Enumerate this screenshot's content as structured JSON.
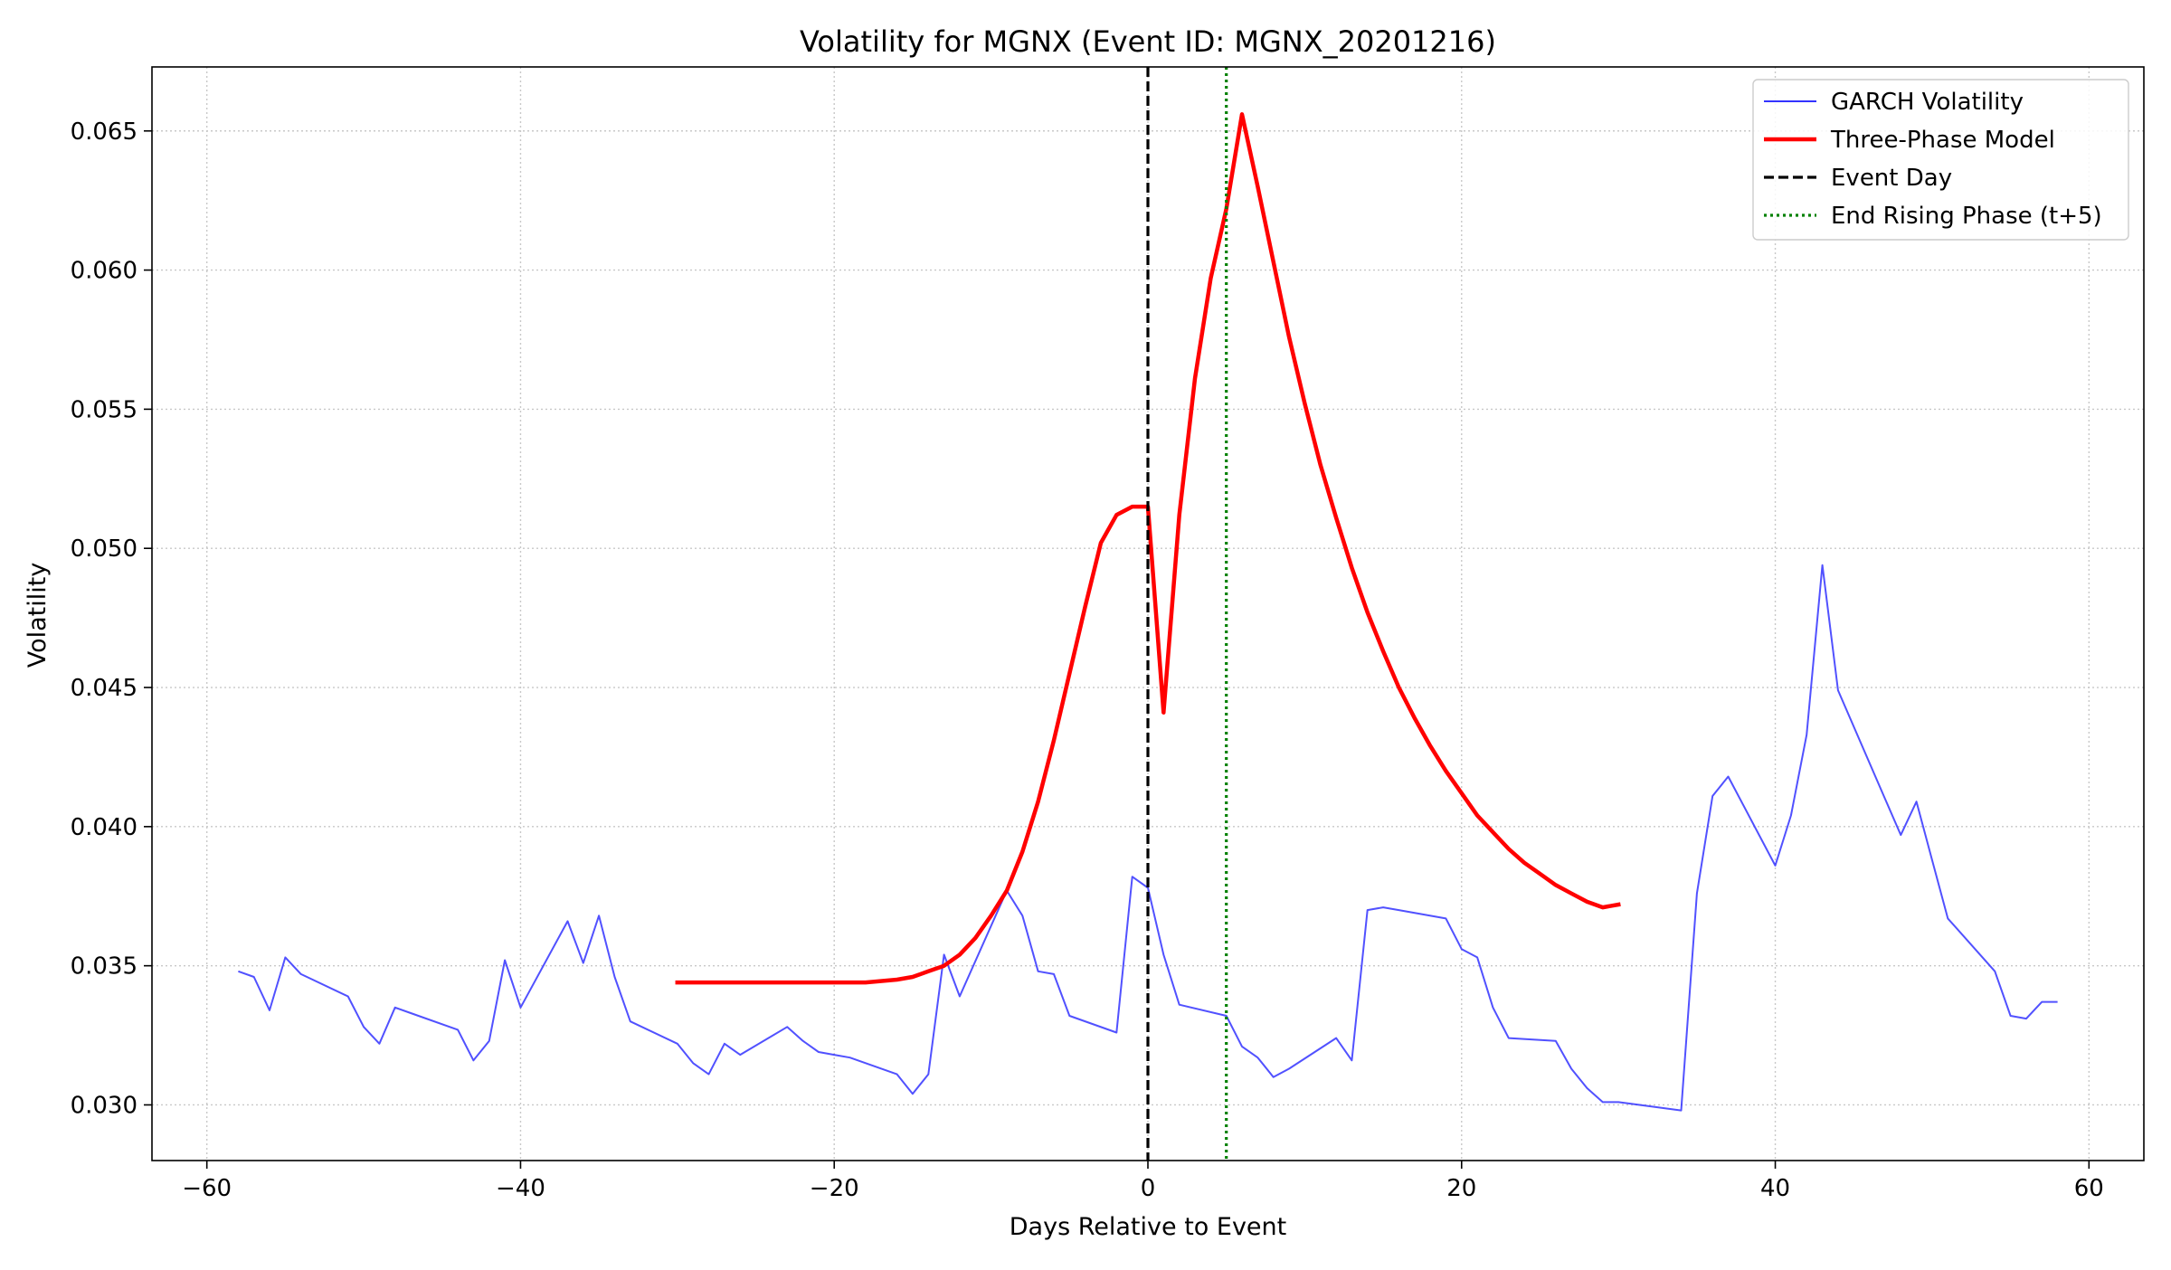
{
  "chart_data": {
    "type": "line",
    "title": "Volatility for MGNX (Event ID: MGNX_20201216)",
    "xlabel": "Days Relative to Event",
    "ylabel": "Volatility",
    "xlim": [
      -63.5,
      63.5
    ],
    "ylim": [
      0.028,
      0.0673
    ],
    "x_ticks": [
      -60,
      -40,
      -20,
      0,
      20,
      40,
      60
    ],
    "x_tick_labels": [
      "−60",
      "−40",
      "−20",
      "0",
      "20",
      "40",
      "60"
    ],
    "y_ticks": [
      0.03,
      0.035,
      0.04,
      0.045,
      0.05,
      0.055,
      0.06,
      0.065
    ],
    "y_tick_labels": [
      "0.030",
      "0.035",
      "0.040",
      "0.045",
      "0.050",
      "0.055",
      "0.060",
      "0.065"
    ],
    "grid": true,
    "legend_position": "top-right",
    "series": [
      {
        "name": "GARCH Volatility",
        "color": "#3333ff",
        "style": "solid-thin",
        "x": [
          -58,
          -57,
          -56,
          -55,
          -54,
          -51,
          -50,
          -49,
          -48,
          -47,
          -44,
          -43,
          -42,
          -41,
          -40,
          -37,
          -36,
          -35,
          -34,
          -33,
          -30,
          -29,
          -28,
          -27,
          -26,
          -23,
          -22,
          -21,
          -20,
          -19,
          -16,
          -15,
          -14,
          -13,
          -12,
          -9,
          -8,
          -7,
          -6,
          -5,
          -2,
          -1,
          0,
          1,
          2,
          5,
          6,
          7,
          8,
          9,
          12,
          13,
          14,
          15,
          16,
          19,
          20,
          21,
          22,
          23,
          26,
          27,
          28,
          29,
          30,
          34,
          35,
          36,
          37,
          40,
          41,
          42,
          43,
          44,
          47,
          48,
          49,
          50,
          51,
          54,
          55,
          56,
          57,
          58
        ],
        "values": [
          0.0348,
          0.0346,
          0.0334,
          0.0353,
          0.0347,
          0.0339,
          0.0328,
          0.0322,
          0.0335,
          0.0333,
          0.0327,
          0.0316,
          0.0323,
          0.0352,
          0.0335,
          0.0366,
          0.0351,
          0.0368,
          0.0346,
          0.033,
          0.0322,
          0.0315,
          0.0311,
          0.0322,
          0.0318,
          0.0328,
          0.0323,
          0.0319,
          0.0318,
          0.0317,
          0.0311,
          0.0304,
          0.0311,
          0.0354,
          0.0339,
          0.0377,
          0.0368,
          0.0348,
          0.0347,
          0.0332,
          0.0326,
          0.0382,
          0.0378,
          0.0354,
          0.0336,
          0.0332,
          0.0321,
          0.0317,
          0.031,
          0.0313,
          0.0324,
          0.0316,
          0.037,
          0.0371,
          0.037,
          0.0367,
          0.0356,
          0.0353,
          0.0335,
          0.0324,
          0.0323,
          0.0313,
          0.0306,
          0.0301,
          0.0301,
          0.0298,
          0.0376,
          0.0411,
          0.0418,
          0.0386,
          0.0404,
          0.0433,
          0.0494,
          0.0449,
          0.041,
          0.0397,
          0.0409,
          0.0388,
          0.0367,
          0.0348,
          0.0332,
          0.0331,
          0.0337,
          0.0337
        ]
      },
      {
        "name": "Three-Phase Model",
        "color": "#ff0000",
        "style": "solid-thick",
        "x": [
          -30,
          -25,
          -20,
          -18,
          -16,
          -15,
          -14,
          -13,
          -12,
          -11,
          -10,
          -9,
          -8,
          -7,
          -6,
          -5,
          -4,
          -3,
          -2,
          -1,
          0,
          1,
          2,
          3,
          4,
          5,
          6,
          7,
          8,
          9,
          10,
          11,
          12,
          13,
          14,
          15,
          16,
          17,
          18,
          19,
          20,
          21,
          22,
          23,
          24,
          25,
          26,
          27,
          28,
          29,
          30
        ],
        "values": [
          0.0344,
          0.0344,
          0.0344,
          0.0344,
          0.0345,
          0.0346,
          0.0348,
          0.035,
          0.0354,
          0.036,
          0.0368,
          0.0377,
          0.0391,
          0.0409,
          0.0431,
          0.0455,
          0.0479,
          0.0502,
          0.0512,
          0.0515,
          0.0515,
          0.0441,
          0.0512,
          0.0561,
          0.0597,
          0.0622,
          0.0656,
          0.063,
          0.0603,
          0.0576,
          0.0552,
          0.053,
          0.0511,
          0.0493,
          0.0477,
          0.0463,
          0.045,
          0.0439,
          0.0429,
          0.042,
          0.0412,
          0.0404,
          0.0398,
          0.0392,
          0.0387,
          0.0383,
          0.0379,
          0.0376,
          0.0373,
          0.0371,
          0.0372
        ]
      },
      {
        "name": "Event Day",
        "color": "#000000",
        "style": "dashed-vertical",
        "x_value": 0
      },
      {
        "name": "End Rising Phase (t+5)",
        "color": "#008000",
        "style": "dotted-vertical",
        "x_value": 5
      }
    ]
  }
}
